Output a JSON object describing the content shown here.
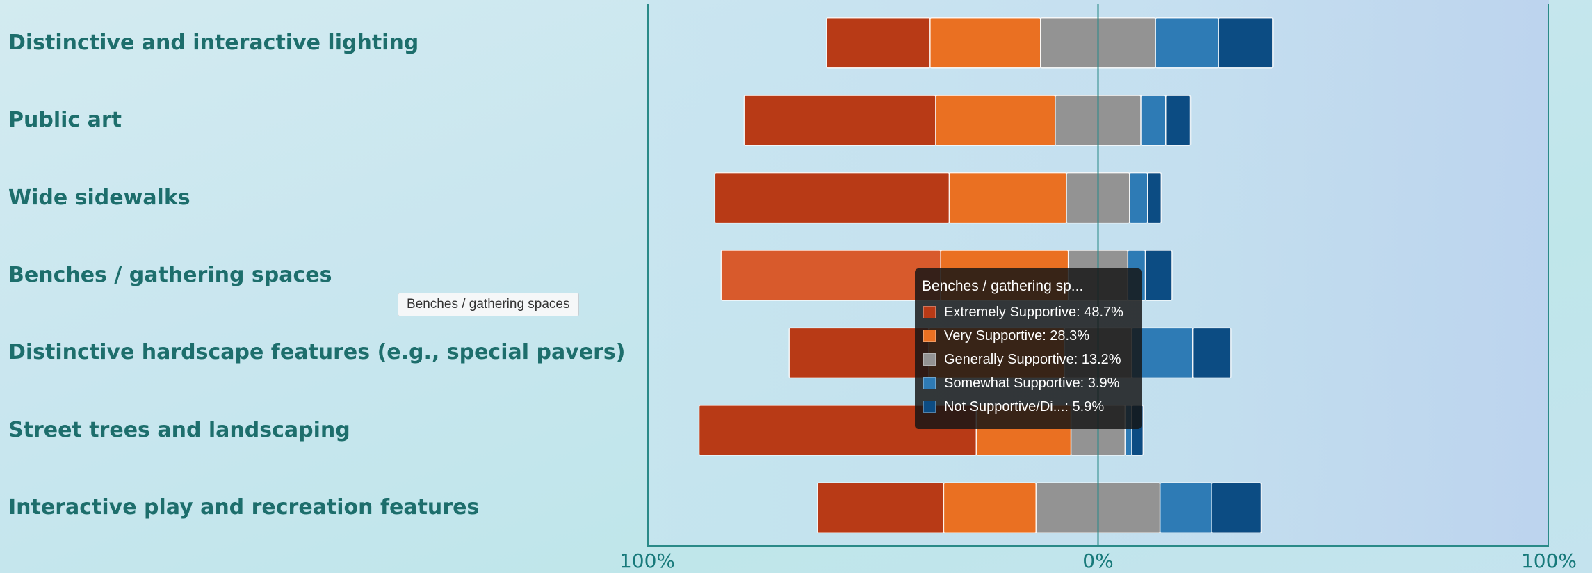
{
  "chart_data": {
    "type": "bar",
    "orientation": "horizontal",
    "layout": "diverging-stacked",
    "categories": [
      "Distinctive and interactive lighting",
      "Public art",
      "Wide sidewalks",
      "Benches / gathering spaces",
      "Distinctive hardscape features (e.g., special pavers)",
      "Street trees and landscaping",
      "Interactive play and recreation features"
    ],
    "series": [
      {
        "name": "Extremely Supportive",
        "color": "#b83a16",
        "values": [
          23.0,
          42.5,
          52.0,
          48.7,
          31.0,
          61.5,
          28.0
        ]
      },
      {
        "name": "Very Supportive",
        "color": "#ea7022",
        "values": [
          24.5,
          26.5,
          26.0,
          28.3,
          30.0,
          21.0,
          20.5
        ]
      },
      {
        "name": "Generally Supportive",
        "color": "#939393",
        "values": [
          25.5,
          19.0,
          14.0,
          13.2,
          15.0,
          12.0,
          27.5
        ]
      },
      {
        "name": "Somewhat Supportive",
        "color": "#2e7bb5",
        "values": [
          14.0,
          5.5,
          4.0,
          3.9,
          13.5,
          1.5,
          11.5
        ]
      },
      {
        "name": "Not Supportive/Di...",
        "color": "#0c4c83",
        "values": [
          12.0,
          5.5,
          3.0,
          5.9,
          8.5,
          2.5,
          11.0
        ]
      }
    ],
    "x_ticks": [
      "100%",
      "0%",
      "100%"
    ],
    "xlim": [
      -100,
      100
    ],
    "highlight_color": "#d85a2c",
    "axis_color": "#2a8a88",
    "tooltip": {
      "title": "Benches / gathering sp...",
      "rows": [
        {
          "label": "Extremely Supportive",
          "value": "48.7%",
          "color": "#b83a16"
        },
        {
          "label": "Very Supportive",
          "value": "28.3%",
          "color": "#ea7022"
        },
        {
          "label": "Generally Supportive",
          "value": "13.2%",
          "color": "#939393"
        },
        {
          "label": "Somewhat Supportive",
          "value": "3.9%",
          "color": "#2e7bb5"
        },
        {
          "label": "Not Supportive/Di...",
          "value": "5.9%",
          "color": "#0c4c83"
        }
      ]
    },
    "hover_label": "Benches / gathering spaces"
  }
}
